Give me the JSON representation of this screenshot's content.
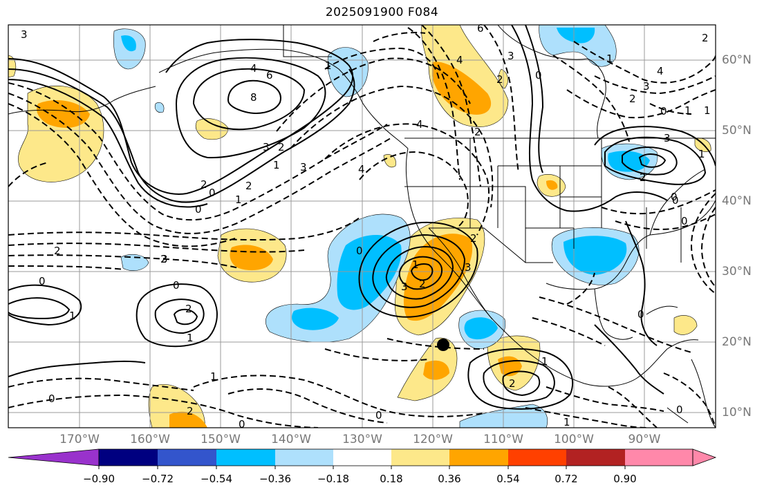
{
  "title": "2025091900 F084",
  "longitude_labels": [
    "170°W",
    "160°W",
    "150°W",
    "140°W",
    "130°W",
    "120°W",
    "110°W",
    "100°W",
    "90°W"
  ],
  "latitude_labels": [
    "60°N",
    "50°N",
    "40°N",
    "30°N",
    "20°N",
    "10°N"
  ],
  "colorbar": {
    "colors": [
      "#9932cc",
      "#000080",
      "#3355cc",
      "#00bfff",
      "#aee0fc",
      "#ffffff",
      "#fde88a",
      "#ffa500",
      "#ff4000",
      "#b22222",
      "#ff88aa"
    ],
    "ticks": [
      "−0.90",
      "−0.72",
      "−0.54",
      "−0.36",
      "−0.18",
      "0.18",
      "0.36",
      "0.54",
      "0.72",
      "0.90"
    ]
  },
  "contour_labels": [
    "3",
    "4",
    "6",
    "8",
    "3",
    "2",
    "1",
    "0",
    "2",
    "0",
    "3",
    "2",
    "1",
    "4",
    "0",
    "3",
    "6",
    "4",
    "2",
    "3",
    "2",
    "0",
    "1",
    "3",
    "2",
    "0",
    "2",
    "3",
    "4",
    "2",
    "1",
    "0",
    "3",
    "2",
    "1",
    "0",
    "3",
    "4",
    "2",
    "1",
    "0",
    "1",
    "2",
    "2",
    "1",
    "0",
    "2",
    "0",
    "1",
    "0",
    "1",
    "2",
    "2",
    "1",
    "0",
    "2",
    "1",
    "0",
    "0",
    "1",
    "0"
  ],
  "marker": "filled-black-dot"
}
